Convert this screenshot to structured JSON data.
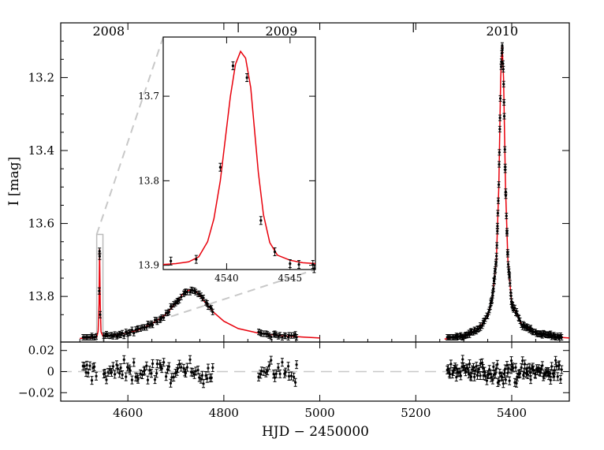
{
  "chart_data": [
    {
      "type": "scatter",
      "panel": "main",
      "xlabel": "HJD − 2450000",
      "ylabel": "I [mag]",
      "xlim": [
        4460,
        5520
      ],
      "ylim": [
        13.925,
        13.05
      ],
      "y_inverted": true,
      "xticks": [
        4600,
        4800,
        5000,
        5200,
        5400
      ],
      "xtick_labels": [
        "4600",
        "4800",
        "5000",
        "5200",
        "5400"
      ],
      "yticks": [
        13.2,
        13.4,
        13.6,
        13.8
      ],
      "ytick_labels": [
        "13.2",
        "13.4",
        "13.6",
        "13.8"
      ],
      "year_marks": [
        {
          "label": "2008",
          "x": 4560
        },
        {
          "label": "2009",
          "x": 4920
        },
        {
          "label": "2010",
          "x": 5380
        }
      ],
      "year_separators": [
        4830,
        5195
      ],
      "highlight_window": {
        "x": [
          4535,
          4548
        ],
        "y": [
          13.925,
          13.63
        ]
      },
      "model_color": "#e8000b",
      "point_color": "#000000",
      "baseline_mag": 13.915,
      "model_curve": [
        [
          4500,
          13.915
        ],
        [
          4520,
          13.914
        ],
        [
          4535,
          13.912
        ],
        [
          4538,
          13.895
        ],
        [
          4539.8,
          13.82
        ],
        [
          4541,
          13.67
        ],
        [
          4542.4,
          13.82
        ],
        [
          4544,
          13.897
        ],
        [
          4548,
          13.909
        ],
        [
          4580,
          13.905
        ],
        [
          4620,
          13.893
        ],
        [
          4650,
          13.875
        ],
        [
          4680,
          13.848
        ],
        [
          4700,
          13.818
        ],
        [
          4715,
          13.792
        ],
        [
          4730,
          13.781
        ],
        [
          4745,
          13.79
        ],
        [
          4760,
          13.815
        ],
        [
          4780,
          13.845
        ],
        [
          4800,
          13.868
        ],
        [
          4830,
          13.888
        ],
        [
          4870,
          13.9
        ],
        [
          4920,
          13.908
        ],
        [
          5000,
          13.914
        ]
      ],
      "model_curve_2": [
        [
          5260,
          13.917
        ],
        [
          5300,
          13.908
        ],
        [
          5330,
          13.89
        ],
        [
          5350,
          13.855
        ],
        [
          5360,
          13.8
        ],
        [
          5368,
          13.7
        ],
        [
          5373,
          13.5
        ],
        [
          5377,
          13.2
        ],
        [
          5380,
          13.11
        ],
        [
          5383,
          13.2
        ],
        [
          5387,
          13.5
        ],
        [
          5392,
          13.7
        ],
        [
          5400,
          13.82
        ],
        [
          5420,
          13.875
        ],
        [
          5450,
          13.9
        ],
        [
          5500,
          13.912
        ],
        [
          5520,
          13.914
        ]
      ],
      "data_segments": [
        {
          "x_start": 4505,
          "x_end": 4535,
          "count": 10
        },
        {
          "x_start": 4548,
          "x_end": 4780,
          "count": 70
        },
        {
          "x_start": 4870,
          "x_end": 4955,
          "count": 22
        },
        {
          "x_start": 5265,
          "x_end": 5505,
          "count": 120
        }
      ],
      "peak_points": [
        [
          4540.9,
          13.676
        ],
        [
          4541.2,
          13.69
        ],
        [
          4540.3,
          13.785
        ],
        [
          4542.1,
          13.85
        ]
      ]
    },
    {
      "type": "scatter",
      "panel": "residuals",
      "xlim": [
        4460,
        5520
      ],
      "ylim": [
        -0.028,
        0.028
      ],
      "yticks": [
        0.02,
        0,
        -0.02
      ],
      "ytick_labels": [
        "0.02",
        "0",
        "−0.02"
      ],
      "zero_line": 0
    },
    {
      "type": "scatter",
      "panel": "inset",
      "xlim": [
        4535,
        4547
      ],
      "ylim": [
        13.905,
        13.63
      ],
      "y_inverted": true,
      "xticks": [
        4540,
        4545
      ],
      "xtick_labels": [
        "4540",
        "4545"
      ],
      "yticks": [
        13.7,
        13.8,
        13.9
      ],
      "ytick_labels": [
        "13.7",
        "13.8",
        "13.9"
      ],
      "model_curve": [
        [
          4535,
          13.899
        ],
        [
          4536,
          13.898
        ],
        [
          4537,
          13.896
        ],
        [
          4537.8,
          13.89
        ],
        [
          4538.5,
          13.872
        ],
        [
          4539,
          13.845
        ],
        [
          4539.5,
          13.8
        ],
        [
          4539.9,
          13.75
        ],
        [
          4540.3,
          13.7
        ],
        [
          4540.7,
          13.662
        ],
        [
          4541.1,
          13.647
        ],
        [
          4541.5,
          13.655
        ],
        [
          4541.9,
          13.69
        ],
        [
          4542.2,
          13.74
        ],
        [
          4542.5,
          13.79
        ],
        [
          4542.9,
          13.84
        ],
        [
          4543.4,
          13.873
        ],
        [
          4544,
          13.888
        ],
        [
          4545,
          13.894
        ],
        [
          4546,
          13.897
        ],
        [
          4547,
          13.898
        ]
      ],
      "points": [
        [
          4535.6,
          13.895
        ],
        [
          4537.6,
          13.893
        ],
        [
          4539.5,
          13.784
        ],
        [
          4540.5,
          13.664
        ],
        [
          4541.6,
          13.678
        ],
        [
          4542.7,
          13.847
        ],
        [
          4543.8,
          13.884
        ],
        [
          4545.0,
          13.898
        ],
        [
          4545.7,
          13.899
        ],
        [
          4546.8,
          13.899
        ],
        [
          4546.9,
          13.904
        ]
      ]
    }
  ]
}
